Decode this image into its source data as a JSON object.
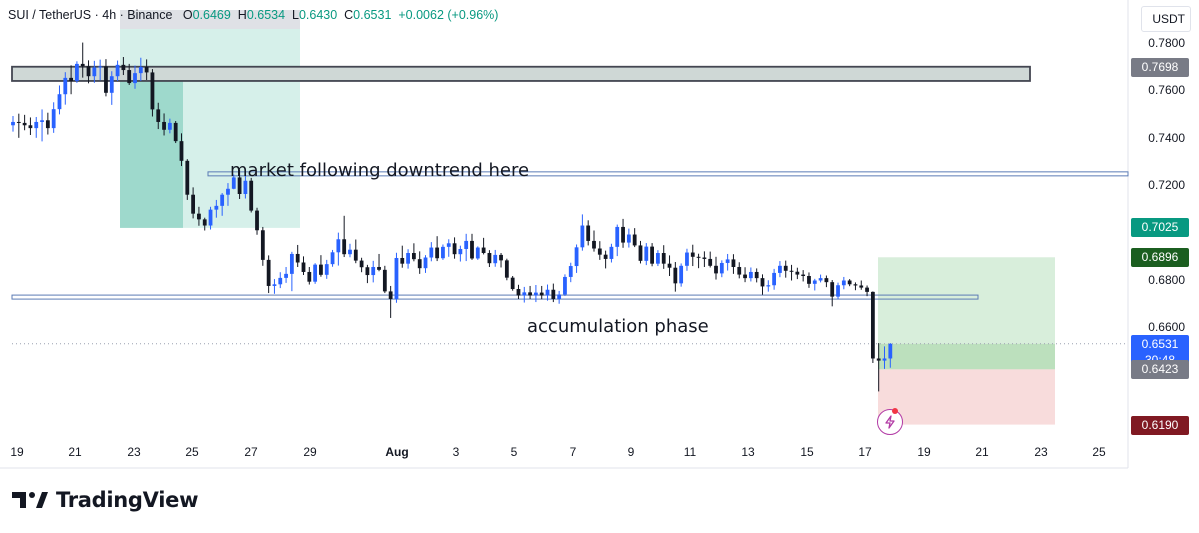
{
  "header": {
    "symbol": "SUI / TetherUS · 4h · Binance",
    "open_label": "O",
    "open": "0.6469",
    "high_label": "H",
    "high": "0.6534",
    "low_label": "L",
    "low": "0.6430",
    "close_label": "C",
    "close": "0.6531",
    "change": "+0.0062 (+0.96%)"
  },
  "currency": "USDT",
  "brand": "TradingView",
  "annotations": {
    "downtrend": "market following downtrend here",
    "accumulation": "accumulation phase"
  },
  "colors": {
    "up": "#2962ff",
    "down": "#131722",
    "accent_green": "#089981",
    "target_zone": "#a5d6a7",
    "stop_zone": "#f3c5c5"
  },
  "price_tags": [
    {
      "value": "0.7698",
      "color": "#787b86"
    },
    {
      "value": "0.7025",
      "color": "#089981"
    },
    {
      "value": "0.6896",
      "color": "#1b5e20"
    },
    {
      "value": "0.6531",
      "sub": "30:48",
      "color": "#2962ff"
    },
    {
      "value": "0.6423",
      "color": "#787b86"
    },
    {
      "value": "0.6190",
      "color": "#801922"
    }
  ],
  "chart_data": {
    "type": "candlestick",
    "y_ticks": [
      "0.7800",
      "0.7600",
      "0.7400",
      "0.7200",
      "0.6800",
      "0.6600"
    ],
    "ylim": [
      0.6125,
      0.7855
    ],
    "x_ticks": [
      "19",
      "21",
      "23",
      "25",
      "27",
      "29",
      "Aug",
      "3",
      "5",
      "7",
      "9",
      "11",
      "13",
      "15",
      "17",
      "19",
      "21",
      "23",
      "25"
    ],
    "levels": [
      {
        "name": "resistance",
        "low": 0.764,
        "high": 0.77
      },
      {
        "name": "downtrend-line",
        "value": 0.7248
      },
      {
        "name": "accumulation-line",
        "value": 0.6728
      }
    ],
    "zones": [
      {
        "name": "downtrend-zone",
        "low": 0.702,
        "high": 0.78
      },
      {
        "name": "target-zone",
        "low": 0.6531,
        "high": 0.6896
      },
      {
        "name": "stop-zone",
        "low": 0.619,
        "high": 0.6423
      }
    ],
    "ohlc": [
      [
        0.7453,
        0.7492,
        0.7426,
        0.7467
      ],
      [
        0.7467,
        0.7502,
        0.74,
        0.7463
      ],
      [
        0.7463,
        0.7497,
        0.7432,
        0.7453
      ],
      [
        0.7453,
        0.7486,
        0.7412,
        0.7441
      ],
      [
        0.7441,
        0.7488,
        0.74,
        0.7467
      ],
      [
        0.7467,
        0.752,
        0.7385,
        0.7474
      ],
      [
        0.7474,
        0.7506,
        0.7414,
        0.7441
      ],
      [
        0.7441,
        0.755,
        0.7421,
        0.7521
      ],
      [
        0.7521,
        0.7621,
        0.7499,
        0.7584
      ],
      [
        0.7584,
        0.7677,
        0.754,
        0.7653
      ],
      [
        0.7653,
        0.7706,
        0.7584,
        0.764
      ],
      [
        0.764,
        0.7723,
        0.7632,
        0.7712
      ],
      [
        0.7712,
        0.7802,
        0.7654,
        0.7702
      ],
      [
        0.7702,
        0.7727,
        0.763,
        0.766
      ],
      [
        0.766,
        0.7725,
        0.7632,
        0.7697
      ],
      [
        0.7697,
        0.773,
        0.7643,
        0.7701
      ],
      [
        0.7701,
        0.7732,
        0.7575,
        0.759
      ],
      [
        0.759,
        0.7681,
        0.7539,
        0.766
      ],
      [
        0.766,
        0.7726,
        0.764,
        0.7708
      ],
      [
        0.7708,
        0.7741,
        0.7665,
        0.7686
      ],
      [
        0.7686,
        0.7712,
        0.7623,
        0.7631
      ],
      [
        0.7631,
        0.7705,
        0.7607,
        0.7673
      ],
      [
        0.7673,
        0.7738,
        0.764,
        0.7699
      ],
      [
        0.7699,
        0.7731,
        0.7644,
        0.7676
      ],
      [
        0.7676,
        0.769,
        0.749,
        0.752
      ],
      [
        0.752,
        0.7548,
        0.7437,
        0.7467
      ],
      [
        0.7467,
        0.7503,
        0.741,
        0.7434
      ],
      [
        0.7434,
        0.7481,
        0.7419,
        0.7463
      ],
      [
        0.7463,
        0.7471,
        0.7378,
        0.7386
      ],
      [
        0.7386,
        0.7419,
        0.7281,
        0.7303
      ],
      [
        0.7303,
        0.731,
        0.7138,
        0.716
      ],
      [
        0.716,
        0.7191,
        0.706,
        0.708
      ],
      [
        0.708,
        0.7109,
        0.7029,
        0.7056
      ],
      [
        0.7056,
        0.7063,
        0.7009,
        0.703
      ],
      [
        0.703,
        0.7109,
        0.7013,
        0.7097
      ],
      [
        0.7097,
        0.7138,
        0.7063,
        0.7113
      ],
      [
        0.7113,
        0.7167,
        0.7071,
        0.716
      ],
      [
        0.716,
        0.7209,
        0.7113,
        0.7185
      ],
      [
        0.7185,
        0.7245,
        0.7183,
        0.7233
      ],
      [
        0.7233,
        0.7266,
        0.7142,
        0.7163
      ],
      [
        0.7163,
        0.7268,
        0.7144,
        0.7219
      ],
      [
        0.7219,
        0.7231,
        0.7085,
        0.7093
      ],
      [
        0.7093,
        0.7105,
        0.6991,
        0.701
      ],
      [
        0.701,
        0.7024,
        0.686,
        0.6885
      ],
      [
        0.6885,
        0.6904,
        0.6745,
        0.6775
      ],
      [
        0.6775,
        0.6804,
        0.6742,
        0.6782
      ],
      [
        0.6782,
        0.6833,
        0.6766,
        0.6809
      ],
      [
        0.6809,
        0.6855,
        0.6788,
        0.6826
      ],
      [
        0.6826,
        0.6919,
        0.6753,
        0.691
      ],
      [
        0.691,
        0.6948,
        0.6855,
        0.6874
      ],
      [
        0.6874,
        0.69,
        0.6821,
        0.6834
      ],
      [
        0.6834,
        0.6855,
        0.6781,
        0.6793
      ],
      [
        0.6793,
        0.6871,
        0.6784,
        0.6865
      ],
      [
        0.6865,
        0.6905,
        0.6814,
        0.6822
      ],
      [
        0.6822,
        0.6885,
        0.6805,
        0.6867
      ],
      [
        0.6867,
        0.6927,
        0.6856,
        0.6917
      ],
      [
        0.6917,
        0.7,
        0.6861,
        0.6972
      ],
      [
        0.6972,
        0.7071,
        0.6897,
        0.6909
      ],
      [
        0.6909,
        0.6953,
        0.6896,
        0.6928
      ],
      [
        0.6928,
        0.6971,
        0.6871,
        0.6882
      ],
      [
        0.6882,
        0.6894,
        0.6833,
        0.6854
      ],
      [
        0.6854,
        0.6864,
        0.6787,
        0.6821
      ],
      [
        0.6821,
        0.6881,
        0.679,
        0.6855
      ],
      [
        0.6855,
        0.691,
        0.6837,
        0.6843
      ],
      [
        0.6843,
        0.686,
        0.6745,
        0.6752
      ],
      [
        0.6752,
        0.6775,
        0.664,
        0.672
      ],
      [
        0.672,
        0.6915,
        0.6704,
        0.6893
      ],
      [
        0.6893,
        0.6945,
        0.6852,
        0.6869
      ],
      [
        0.6869,
        0.693,
        0.6848,
        0.6914
      ],
      [
        0.6914,
        0.6955,
        0.6879,
        0.6888
      ],
      [
        0.6888,
        0.6921,
        0.6826,
        0.685
      ],
      [
        0.685,
        0.6905,
        0.683,
        0.6895
      ],
      [
        0.6895,
        0.696,
        0.6879,
        0.6937
      ],
      [
        0.6937,
        0.6985,
        0.688,
        0.6892
      ],
      [
        0.6892,
        0.695,
        0.6885,
        0.694
      ],
      [
        0.694,
        0.6972,
        0.6898,
        0.6955
      ],
      [
        0.6955,
        0.698,
        0.689,
        0.6909
      ],
      [
        0.6909,
        0.6945,
        0.6878,
        0.6931
      ],
      [
        0.6931,
        0.6995,
        0.688,
        0.6965
      ],
      [
        0.6965,
        0.6995,
        0.6885,
        0.6891
      ],
      [
        0.6891,
        0.6942,
        0.6885,
        0.6937
      ],
      [
        0.6937,
        0.6978,
        0.6908,
        0.6914
      ],
      [
        0.6914,
        0.6926,
        0.6855,
        0.6871
      ],
      [
        0.6871,
        0.6927,
        0.6856,
        0.6906
      ],
      [
        0.6906,
        0.6914,
        0.6853,
        0.6883
      ],
      [
        0.6883,
        0.689,
        0.6799,
        0.681
      ],
      [
        0.681,
        0.6817,
        0.6755,
        0.6762
      ],
      [
        0.6762,
        0.678,
        0.672,
        0.6735
      ],
      [
        0.6735,
        0.6771,
        0.6705,
        0.6748
      ],
      [
        0.6748,
        0.6775,
        0.672,
        0.6735
      ],
      [
        0.6735,
        0.6779,
        0.6707,
        0.6747
      ],
      [
        0.6747,
        0.6775,
        0.6719,
        0.6735
      ],
      [
        0.6735,
        0.6781,
        0.6713,
        0.6759
      ],
      [
        0.6759,
        0.6785,
        0.6707,
        0.672
      ],
      [
        0.672,
        0.6754,
        0.67,
        0.6739
      ],
      [
        0.6739,
        0.6824,
        0.6733,
        0.6813
      ],
      [
        0.6813,
        0.6873,
        0.6791,
        0.6859
      ],
      [
        0.6859,
        0.695,
        0.683,
        0.6938
      ],
      [
        0.6938,
        0.7077,
        0.6924,
        0.703
      ],
      [
        0.703,
        0.7052,
        0.6946,
        0.6965
      ],
      [
        0.6965,
        0.7009,
        0.692,
        0.6933
      ],
      [
        0.6933,
        0.6964,
        0.6885,
        0.6907
      ],
      [
        0.6907,
        0.6924,
        0.6849,
        0.6889
      ],
      [
        0.6889,
        0.6953,
        0.6874,
        0.694
      ],
      [
        0.694,
        0.7034,
        0.6901,
        0.7024
      ],
      [
        0.7024,
        0.7058,
        0.6936,
        0.6958
      ],
      [
        0.6958,
        0.7017,
        0.6937,
        0.6992
      ],
      [
        0.6992,
        0.7019,
        0.6939,
        0.6946
      ],
      [
        0.6946,
        0.6965,
        0.687,
        0.6881
      ],
      [
        0.6881,
        0.6956,
        0.6863,
        0.6941
      ],
      [
        0.6941,
        0.6956,
        0.6858,
        0.6869
      ],
      [
        0.6869,
        0.6926,
        0.6859,
        0.6914
      ],
      [
        0.6914,
        0.6947,
        0.6847,
        0.6869
      ],
      [
        0.6869,
        0.6904,
        0.6817,
        0.6852
      ],
      [
        0.6852,
        0.6876,
        0.6751,
        0.6786
      ],
      [
        0.6786,
        0.687,
        0.6772,
        0.686
      ],
      [
        0.686,
        0.6932,
        0.6839,
        0.6916
      ],
      [
        0.6916,
        0.6949,
        0.6859,
        0.6898
      ],
      [
        0.6898,
        0.6911,
        0.685,
        0.6895
      ],
      [
        0.6895,
        0.6921,
        0.6855,
        0.6889
      ],
      [
        0.6889,
        0.692,
        0.6853,
        0.686
      ],
      [
        0.686,
        0.6898,
        0.6802,
        0.6828
      ],
      [
        0.6828,
        0.6883,
        0.6812,
        0.6872
      ],
      [
        0.6872,
        0.691,
        0.684,
        0.6887
      ],
      [
        0.6887,
        0.6909,
        0.6826,
        0.6855
      ],
      [
        0.6855,
        0.6875,
        0.6807,
        0.6823
      ],
      [
        0.6823,
        0.6854,
        0.6791,
        0.6808
      ],
      [
        0.6808,
        0.6853,
        0.6794,
        0.6834
      ],
      [
        0.6834,
        0.6849,
        0.679,
        0.6808
      ],
      [
        0.6808,
        0.6824,
        0.6738,
        0.6773
      ],
      [
        0.6773,
        0.6799,
        0.6751,
        0.6778
      ],
      [
        0.6778,
        0.6847,
        0.6759,
        0.683
      ],
      [
        0.683,
        0.688,
        0.6812,
        0.686
      ],
      [
        0.686,
        0.6882,
        0.681,
        0.6839
      ],
      [
        0.6839,
        0.6864,
        0.6798,
        0.6835
      ],
      [
        0.6835,
        0.6852,
        0.6804,
        0.6823
      ],
      [
        0.6823,
        0.6842,
        0.6794,
        0.6817
      ],
      [
        0.6817,
        0.6832,
        0.6767,
        0.6784
      ],
      [
        0.6784,
        0.6805,
        0.6756,
        0.6798
      ],
      [
        0.6798,
        0.6823,
        0.679,
        0.6808
      ],
      [
        0.6808,
        0.6819,
        0.677,
        0.6791
      ],
      [
        0.6791,
        0.68,
        0.6689,
        0.673
      ],
      [
        0.673,
        0.6789,
        0.672,
        0.6778
      ],
      [
        0.6778,
        0.6813,
        0.6761,
        0.6798
      ],
      [
        0.6798,
        0.6804,
        0.6774,
        0.6782
      ],
      [
        0.6782,
        0.679,
        0.6757,
        0.6777
      ],
      [
        0.6777,
        0.6798,
        0.6759,
        0.6768
      ],
      [
        0.6768,
        0.6777,
        0.6732,
        0.675
      ],
      [
        0.675,
        0.6752,
        0.645,
        0.6469
      ],
      [
        0.6469,
        0.6534,
        0.633,
        0.646
      ],
      [
        0.646,
        0.652,
        0.6425,
        0.6469
      ],
      [
        0.6469,
        0.6534,
        0.643,
        0.6531
      ]
    ]
  }
}
